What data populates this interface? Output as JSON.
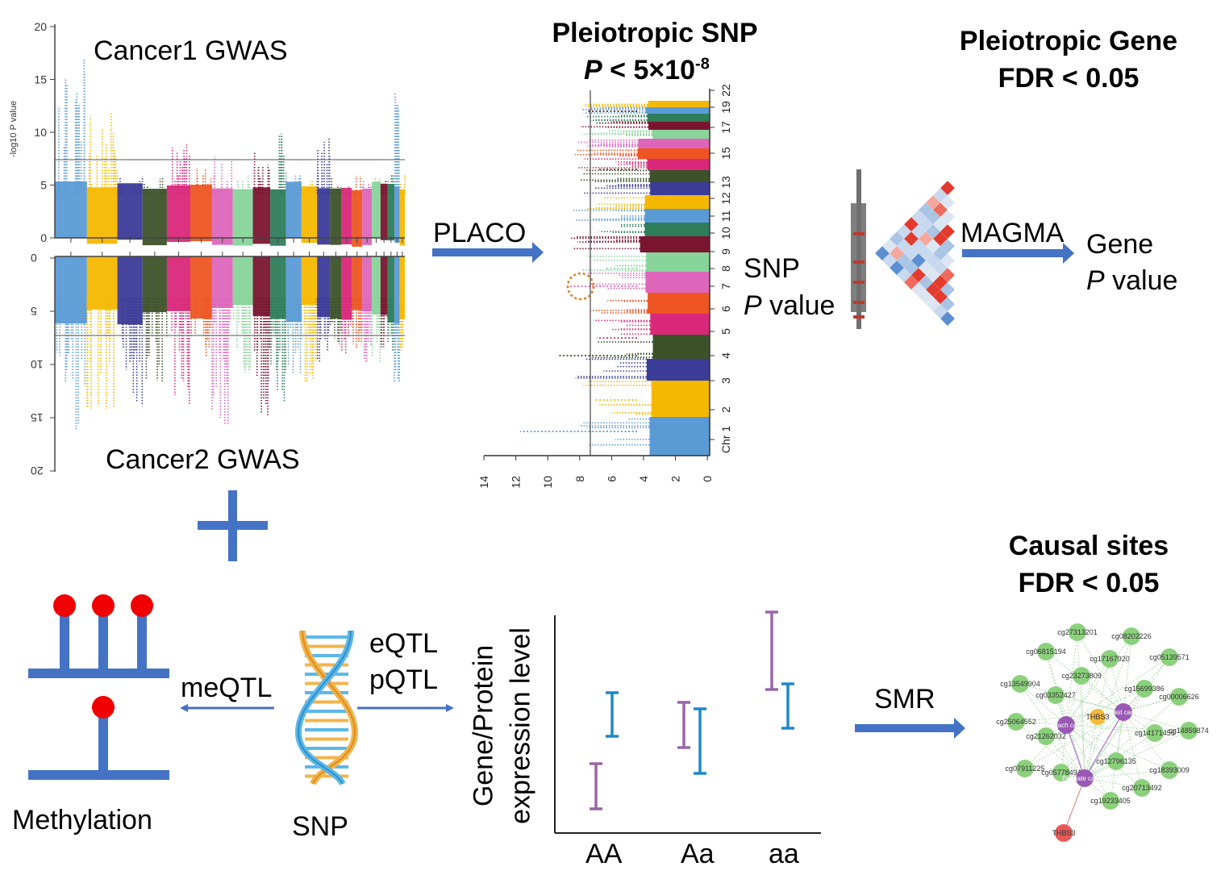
{
  "left_panel": {
    "cancer1_title": "Cancer1 GWAS",
    "cancer2_title": "Cancer2 GWAS",
    "y_axis_label": "-log10 P value",
    "top_ticks": [
      "20",
      "15",
      "10",
      "5",
      "0"
    ],
    "bottom_ticks": [
      "0",
      "5",
      "10",
      "15",
      "20"
    ]
  },
  "placo_label": "PLACO",
  "pleio_snp": {
    "title_line1": "Pleiotropic SNP",
    "p_symbol": "P",
    "threshold": "< 5×10",
    "exponent": "-8",
    "x_ticks": [
      "14",
      "12",
      "10",
      "8",
      "6",
      "4",
      "2",
      "0"
    ],
    "chr_labels": [
      "Chr 1",
      "2",
      "3",
      "4",
      "5",
      "6",
      "7",
      "8",
      "9",
      "10",
      "11",
      "12",
      "13",
      "15",
      "17",
      "19",
      "22"
    ]
  },
  "snp_pvalue": {
    "line1": "SNP",
    "p_symbol": "P",
    "line2_rest": " value"
  },
  "pleio_gene": {
    "line1": "Pleiotropic Gene",
    "line2": "FDR < 0.05"
  },
  "magma_label": "MAGMA",
  "gene_pvalue": {
    "line1": "Gene",
    "p_symbol": "P",
    "line2_rest": " value"
  },
  "methylation_label": "Methylation",
  "meqtl_label": "meQTL",
  "snp_label": "SNP",
  "eqtl_label": "eQTL",
  "pqtl_label": "pQTL",
  "expression": {
    "ylabel_line1": "Gene/Protein",
    "ylabel_line2": "expression level",
    "genotypes": [
      "AA",
      "Aa",
      "aa"
    ]
  },
  "smr_label": "SMR",
  "causal": {
    "line1": "Causal sites",
    "line2": "FDR < 0.05"
  },
  "network": {
    "cpg_nodes": [
      "cg27313201",
      "cg08202226",
      "cg06815194",
      "cg17167920",
      "cg05139571",
      "cg23273809",
      "cg13549904",
      "cg03352427",
      "cg15699386",
      "cg00006626",
      "cg25064552",
      "cg21262032",
      "cg14171456",
      "cg14859874",
      "cg12796135",
      "cg07911225",
      "cg05778494",
      "cg18393009",
      "cg20713492",
      "cg19233405"
    ],
    "trait_nodes": [
      "Breast cancer",
      "Stomach cancer",
      "Prostate cancer"
    ],
    "gene_nodes": [
      "THBS3",
      "THBS3"
    ]
  },
  "colors": {
    "arrow": "#4472C4",
    "chr_palette": [
      "#5B9BD5",
      "#F5B800",
      "#3B3B98",
      "#3D5229",
      "#D9287A",
      "#EE5522",
      "#DD66BB",
      "#88D49A",
      "#7A1530",
      "#2E7D5B"
    ],
    "trait_node": "#9B59B6",
    "cpg_node": "#8BD17C",
    "gene_node": "#E85A5A"
  }
}
